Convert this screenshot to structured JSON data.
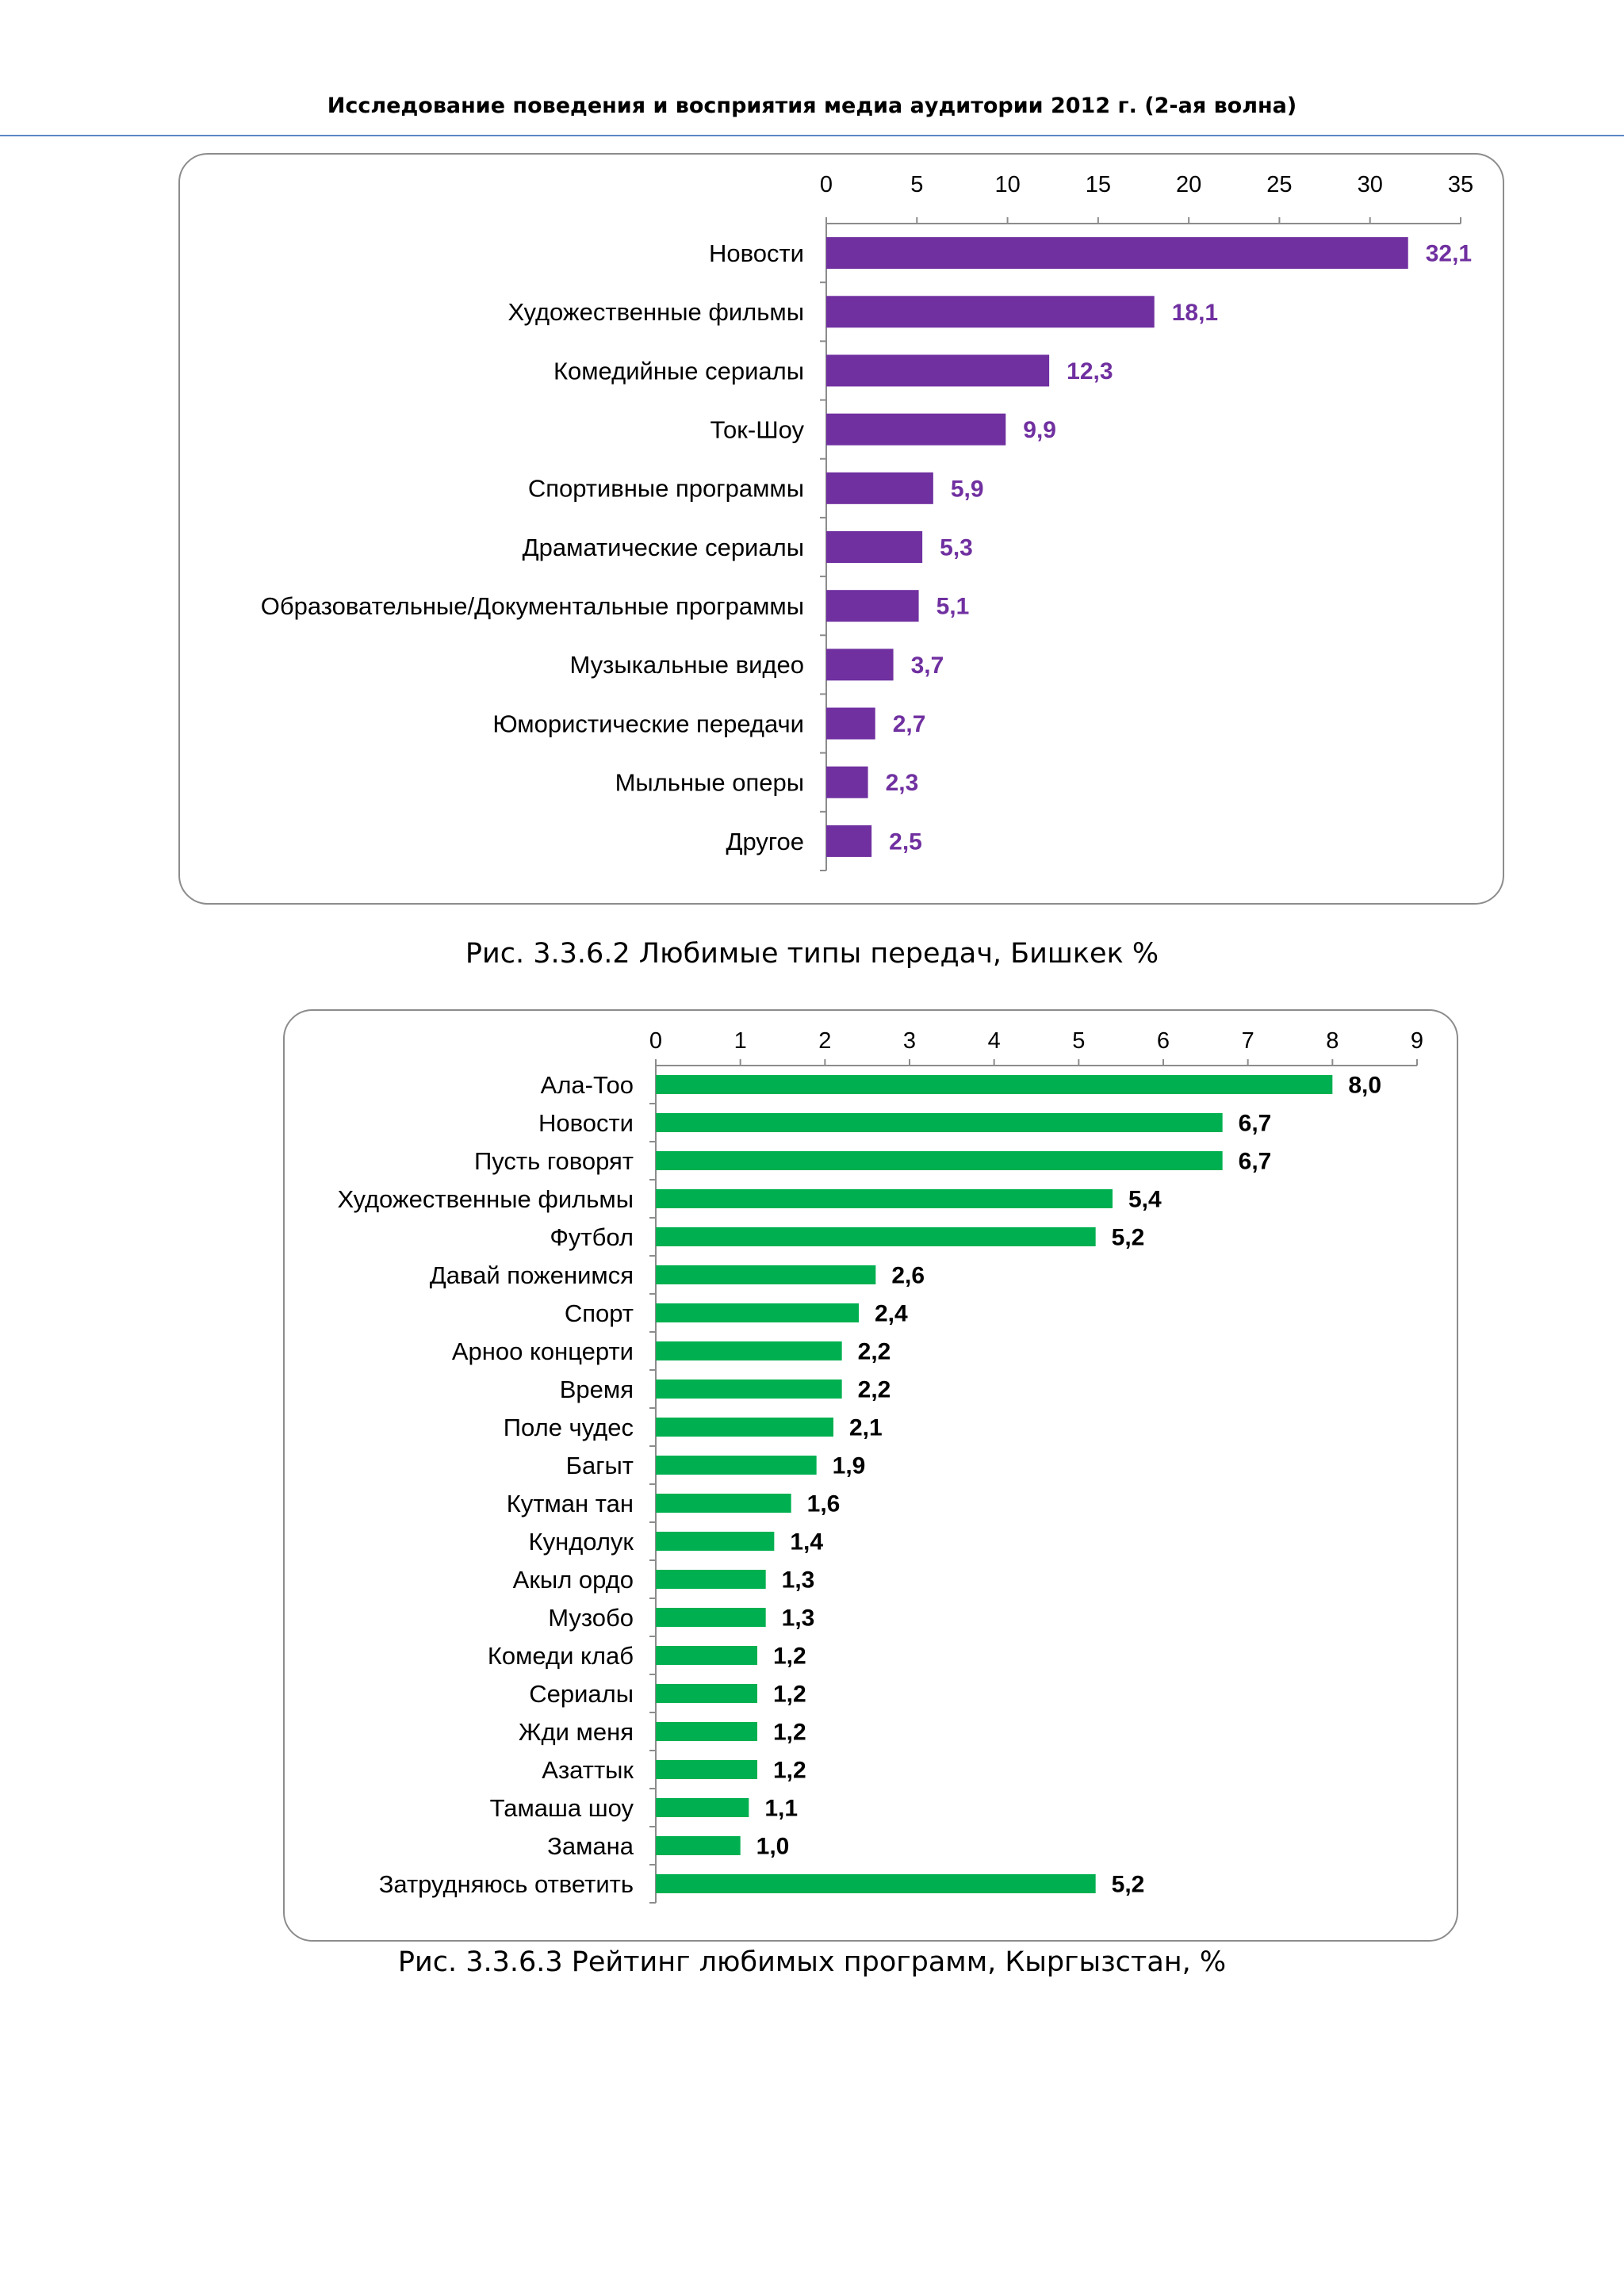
{
  "header": {
    "title": "Исследование поведения и восприятия медиа аудитории 2012 г. (2-ая волна)"
  },
  "captions": {
    "chart1": "Рис. 3.3.6.2 Любимые типы передач, Бишкек %",
    "chart2": "Рис. 3.3.6.3 Рейтинг любимых программ, Кыргызстан, %"
  },
  "colors": {
    "chart1_bar": "#7030a0",
    "chart1_label": "#7030a0",
    "chart2_bar": "#00b050",
    "chart2_label": "#000000",
    "header_rule": "#5b86c4"
  },
  "chart_data": [
    {
      "type": "bar",
      "orientation": "horizontal",
      "categories": [
        "Новости",
        "Художественные фильмы",
        "Комедийные сериалы",
        "Ток-Шоу",
        "Спортивные программы",
        "Драматические сериалы",
        "Образовательные/Документальные программы",
        "Музыкальные видео",
        "Юмористические передачи",
        "Мыльные оперы",
        "Другое"
      ],
      "values": [
        32.1,
        18.1,
        12.3,
        9.9,
        5.9,
        5.3,
        5.1,
        3.7,
        2.7,
        2.3,
        2.5
      ],
      "value_labels": [
        "32,1",
        "18,1",
        "12,3",
        "9,9",
        "5,9",
        "5,3",
        "5,1",
        "3,7",
        "2,7",
        "2,3",
        "2,5"
      ],
      "xlim": [
        0,
        35
      ],
      "xticks": [
        0,
        5,
        10,
        15,
        20,
        25,
        30,
        35
      ],
      "grid": false,
      "legend": "none"
    },
    {
      "type": "bar",
      "orientation": "horizontal",
      "categories": [
        "Ала-Тоо",
        "Новости",
        "Пусть говорят",
        "Художественные фильмы",
        "Футбол",
        "Давай поженимся",
        "Спорт",
        "Арноо концерти",
        "Время",
        "Поле чудес",
        "Багыт",
        "Кутман тан",
        "Кундолук",
        "Акыл ордо",
        "Музобо",
        "Комеди клаб",
        "Сериалы",
        "Жди меня",
        "Азаттык",
        "Тамаша шоу",
        "Замана",
        "Затрудняюсь ответить"
      ],
      "values": [
        8.0,
        6.7,
        6.7,
        5.4,
        5.2,
        2.6,
        2.4,
        2.2,
        2.2,
        2.1,
        1.9,
        1.6,
        1.4,
        1.3,
        1.3,
        1.2,
        1.2,
        1.2,
        1.2,
        1.1,
        1.0,
        5.2
      ],
      "value_labels": [
        "8,0",
        "6,7",
        "6,7",
        "5,4",
        "5,2",
        "2,6",
        "2,4",
        "2,2",
        "2,2",
        "2,1",
        "1,9",
        "1,6",
        "1,4",
        "1,3",
        "1,3",
        "1,2",
        "1,2",
        "1,2",
        "1,2",
        "1,1",
        "1,0",
        "5,2"
      ],
      "xlim": [
        0,
        9
      ],
      "xticks": [
        0,
        1,
        2,
        3,
        4,
        5,
        6,
        7,
        8,
        9
      ],
      "grid": false,
      "legend": "none"
    }
  ]
}
